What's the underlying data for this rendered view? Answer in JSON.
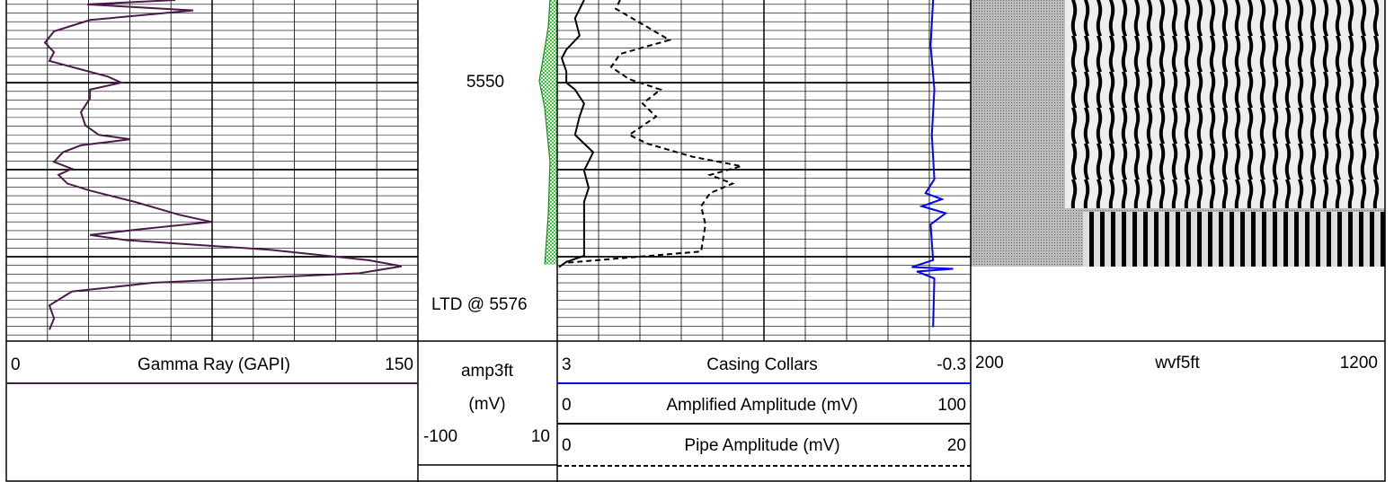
{
  "depth_axis": {
    "ylim": [
      5540.5,
      5579.7
    ],
    "label": 5550,
    "major_lines": [
      5550,
      5560,
      5570
    ],
    "annotation": "LTD @ 5576"
  },
  "chart_data": [
    {
      "type": "line",
      "xlim": [
        0,
        150
      ],
      "series": [
        {
          "name": "Gamma Ray (GAPI)",
          "color": "#4b1a4b",
          "x": [
            5540.5,
            5541.0,
            5541.7,
            5542.8,
            5544.1,
            5545.4,
            5546.5,
            5547.5,
            5548.2,
            5549.3,
            5550.0,
            5550.8,
            5551.8,
            5553.4,
            5554.9,
            5556.0,
            5556.5,
            5557.2,
            5558.0,
            5559.1,
            5559.9,
            5560.6,
            5561.6,
            5562.4,
            5563.7,
            5565.2,
            5566.0,
            5566.8,
            5567.5,
            5568.1,
            5569.2,
            5570.4,
            5571.1,
            5571.9,
            5573.0,
            5574.0,
            5575.6,
            5577.1,
            5578.4
          ],
          "values": [
            61.6,
            29.5,
            68.1,
            30.5,
            17.4,
            14.1,
            17.4,
            15.7,
            23.9,
            37.0,
            41.9,
            30.5,
            30.5,
            27.2,
            28.8,
            33.7,
            45.2,
            27.2,
            20.6,
            17.4,
            23.9,
            19.0,
            22.3,
            30.5,
            46.8,
            63.2,
            74.7,
            50.1,
            30.5,
            43.6,
            96.0,
            132.0,
            144.1,
            128.7,
            53.4,
            23.9,
            15.7,
            17.4,
            15.7
          ]
        }
      ]
    },
    {
      "type": "fill",
      "xlim": [
        -100,
        10
      ],
      "series": [
        {
          "name": "amp3ft",
          "unit": "(mV)",
          "color": "#33cc33",
          "x": [
            5540.5,
            5543.6,
            5546.7,
            5549.8,
            5552.9,
            5559.1,
            5565.2,
            5570.9
          ],
          "values": [
            4.3,
            2.9,
            -0.6,
            -4.2,
            0.1,
            4.3,
            2.9,
            0.1
          ]
        }
      ]
    },
    {
      "type": "line",
      "series": [
        {
          "name": "Casing Collars",
          "color": "#0000ff",
          "xlim": [
            3,
            -0.3
          ],
          "dash": false,
          "x": [
            5540.5,
            5545.7,
            5550.8,
            5556.0,
            5561.1,
            5562.7,
            5563.4,
            5564.2,
            5565.0,
            5566.3,
            5570.4,
            5571.2,
            5571.4,
            5571.7,
            5572.5,
            5578.1
          ],
          "values": [
            0.0,
            0.02,
            -0.01,
            0.01,
            -0.01,
            0.06,
            -0.07,
            0.09,
            -0.1,
            0.02,
            0.0,
            0.17,
            -0.16,
            0.13,
            -0.01,
            0.0
          ]
        },
        {
          "name": "Amplified Amplitude (mV)",
          "color": "#000000",
          "xlim": [
            0,
            100
          ],
          "dash": false,
          "x": [
            5540.5,
            5542.6,
            5544.6,
            5546.2,
            5547.2,
            5548.7,
            5550.0,
            5550.8,
            5552.4,
            5553.9,
            5556.0,
            5558.0,
            5560.1,
            5562.1,
            5563.7,
            5565.2,
            5567.3,
            5569.9,
            5570.6,
            5571.2
          ],
          "values": [
            6.5,
            4.3,
            5.4,
            2.2,
            1.1,
            2.2,
            2.2,
            4.3,
            6.5,
            5.4,
            4.3,
            8.7,
            6.5,
            7.6,
            6.5,
            6.5,
            6.5,
            6.5,
            2.2,
            0.4
          ]
        },
        {
          "name": "Pipe Amplitude (mV)",
          "color": "#000000",
          "xlim": [
            0,
            20
          ],
          "dash": true,
          "x": [
            5540.5,
            5541.5,
            5543.6,
            5545.1,
            5546.7,
            5548.2,
            5549.6,
            5550.8,
            5552.4,
            5553.9,
            5556.0,
            5557.0,
            5558.5,
            5559.6,
            5560.6,
            5561.6,
            5562.7,
            5564.2,
            5566.3,
            5569.4,
            5570.1,
            5570.7
          ],
          "values": [
            3.04,
            2.83,
            4.35,
            5.43,
            3.04,
            2.61,
            3.48,
            5.0,
            4.13,
            4.78,
            3.48,
            4.35,
            6.52,
            8.91,
            7.39,
            8.48,
            7.39,
            6.96,
            7.17,
            6.96,
            3.48,
            0.43
          ]
        }
      ]
    },
    {
      "type": "vdl",
      "xlim": [
        200,
        1200
      ],
      "series": [
        {
          "name": "wvf5ft"
        }
      ]
    }
  ]
}
